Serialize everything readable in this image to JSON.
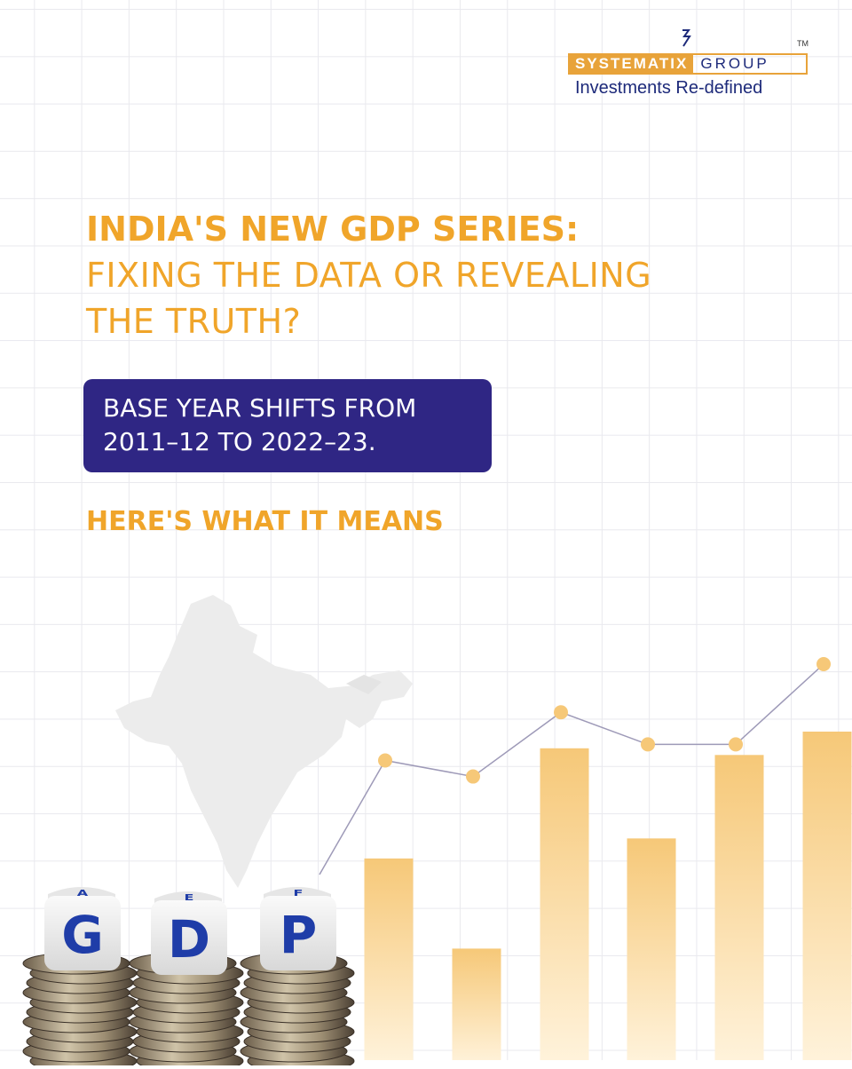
{
  "logo": {
    "left_text": "SYSTEMATIX",
    "right_text": "GROUP",
    "tm": "TM",
    "tagline": "Investments Re-defined"
  },
  "headline": {
    "line1": "INDIA'S NEW GDP SERIES:",
    "line2": "FIXING THE DATA OR REVEALING",
    "line3": "THE TRUTH?"
  },
  "badge": {
    "line1": "BASE YEAR SHIFTS FROM",
    "line2": "2011–12 TO 2022–23."
  },
  "subheading": "HERE'S WHAT IT MEANS",
  "dice": [
    {
      "front": "G",
      "top": "A"
    },
    {
      "front": "D",
      "top": "E"
    },
    {
      "front": "P",
      "top": "F"
    }
  ],
  "colors": {
    "accent_orange": "#f0a52a",
    "badge_navy": "#2f2684",
    "brand_blue": "#1d2a7a",
    "bar_light": "#fbe3b4"
  },
  "chart_data": {
    "type": "bar",
    "bars": [
      0.62,
      0.35,
      0.95,
      0.68,
      0.93,
      1.0
    ],
    "line": [
      0.76,
      0.72,
      0.88,
      0.8,
      0.8,
      1.0
    ]
  }
}
